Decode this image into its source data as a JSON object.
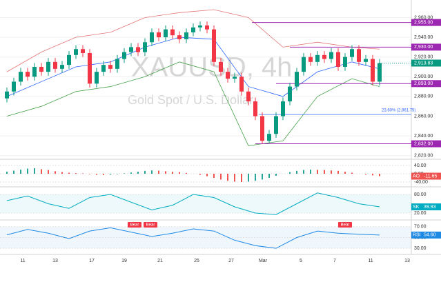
{
  "chart_data": {
    "type": "candlestick",
    "title": "XAUUSD, 4h",
    "subtitle": "Gold Spot / U.S. Dollar",
    "up_color": "#089981",
    "down_color": "#f23645",
    "open": [
      2878,
      2885,
      2895,
      2905,
      2900,
      2910,
      2905,
      2915,
      2908,
      2912,
      2922,
      2928,
      2924,
      2893,
      2905,
      2912,
      2908,
      2918,
      2925,
      2930,
      2925,
      2935,
      2945,
      2940,
      2948,
      2942,
      2938,
      2945,
      2950,
      2952,
      2948,
      2915,
      2905,
      2898,
      2900,
      2885,
      2875,
      2860,
      2835,
      2842,
      2860,
      2875,
      2890,
      2905,
      2920,
      2915,
      2922,
      2918,
      2925,
      2910,
      2920,
      2928,
      2915,
      2918,
      2895
    ],
    "high": [
      2889,
      2899,
      2909,
      2909,
      2914,
      2914,
      2919,
      2919,
      2916,
      2926,
      2932,
      2932,
      2928,
      2909,
      2916,
      2916,
      2922,
      2929,
      2934,
      2934,
      2939,
      2949,
      2949,
      2952,
      2952,
      2946,
      2949,
      2954,
      2956,
      2956,
      2952,
      2919,
      2909,
      2904,
      2904,
      2889,
      2879,
      2864,
      2846,
      2864,
      2879,
      2894,
      2909,
      2924,
      2924,
      2926,
      2926,
      2929,
      2929,
      2924,
      2932,
      2932,
      2922,
      2922,
      2918
    ],
    "low": [
      2874,
      2881,
      2891,
      2896,
      2896,
      2901,
      2901,
      2904,
      2904,
      2908,
      2918,
      2920,
      2889,
      2889,
      2901,
      2904,
      2904,
      2914,
      2921,
      2921,
      2921,
      2931,
      2936,
      2936,
      2938,
      2934,
      2934,
      2941,
      2946,
      2944,
      2911,
      2901,
      2894,
      2894,
      2881,
      2871,
      2856,
      2832,
      2833,
      2838,
      2856,
      2871,
      2886,
      2901,
      2911,
      2911,
      2914,
      2914,
      2906,
      2906,
      2916,
      2911,
      2911,
      2891,
      2891
    ],
    "close": [
      2885,
      2895,
      2905,
      2900,
      2910,
      2905,
      2915,
      2908,
      2912,
      2922,
      2928,
      2924,
      2893,
      2905,
      2912,
      2908,
      2918,
      2925,
      2930,
      2925,
      2935,
      2945,
      2940,
      2948,
      2942,
      2938,
      2945,
      2950,
      2952,
      2948,
      2915,
      2905,
      2898,
      2900,
      2885,
      2875,
      2860,
      2835,
      2842,
      2860,
      2875,
      2890,
      2905,
      2920,
      2915,
      2922,
      2918,
      2925,
      2910,
      2920,
      2928,
      2915,
      2918,
      2895,
      2913.83
    ],
    "ylim": [
      2817,
      2975
    ],
    "yticks": [
      {
        "value": 2820,
        "label": "2,820.00"
      },
      {
        "value": 2840,
        "label": "2,840.00"
      },
      {
        "value": 2860,
        "label": "2,860.00"
      },
      {
        "value": 2880,
        "label": "2,880.00"
      },
      {
        "value": 2900,
        "label": "2,900.00"
      },
      {
        "value": 2920,
        "label": "2,920.00"
      },
      {
        "value": 2940,
        "label": "2,940.00"
      },
      {
        "value": 2960,
        "label": "2,960.00"
      }
    ],
    "levels": [
      {
        "value": 2955,
        "label": "2,955.00"
      },
      {
        "value": 2930,
        "label": "2,930.00"
      },
      {
        "value": 2893,
        "label": "2,893.00"
      },
      {
        "value": 2832,
        "label": "2,832.00"
      }
    ],
    "level_color": "#9c27b0",
    "current": {
      "value": 2913.83,
      "label": "2,913.83"
    },
    "fib": {
      "value": 2861.75,
      "label": "23.60% (2,861.75)"
    },
    "bands": {
      "x": [
        0,
        5,
        10,
        15,
        20,
        25,
        30,
        35,
        40,
        45,
        50,
        54
      ],
      "upper": [
        2905,
        2925,
        2940,
        2945,
        2960,
        2965,
        2968,
        2960,
        2930,
        2935,
        2930,
        2928
      ],
      "middle": [
        2880,
        2895,
        2910,
        2915,
        2930,
        2940,
        2938,
        2890,
        2880,
        2905,
        2915,
        2908
      ],
      "lower": [
        2860,
        2870,
        2885,
        2890,
        2900,
        2915,
        2905,
        2830,
        2835,
        2880,
        2898,
        2890
      ]
    },
    "x_labels": [
      "11",
      "13",
      "17",
      "19",
      "21",
      "25",
      "27",
      "Mar",
      "5",
      "7",
      "11",
      "13"
    ],
    "ao": {
      "name": "AO",
      "last_label": "-11.65",
      "ylim": [
        -60,
        60
      ],
      "yticks": [
        {
          "value": 40,
          "label": "40.00"
        },
        {
          "value": 0,
          "label": "0.00"
        },
        {
          "value": -40,
          "label": "-40.00"
        }
      ],
      "values": [
        10,
        15,
        20,
        25,
        27,
        22,
        18,
        12,
        8,
        5,
        3,
        2,
        -2,
        -5,
        -6,
        -4,
        -2,
        2,
        6,
        10,
        14,
        16,
        15,
        12,
        10,
        8,
        4,
        0,
        -5,
        -12,
        -20,
        -28,
        -34,
        -38,
        -40,
        -38,
        -34,
        -28,
        -20,
        -10,
        0,
        8,
        14,
        18,
        20,
        19,
        18,
        16,
        14,
        10,
        5,
        0,
        -4,
        -8,
        -11.65
      ]
    },
    "stoch": {
      "name": "SK",
      "last_label": "39.93",
      "ylim": [
        0,
        100
      ],
      "yticks": [
        {
          "value": 80,
          "label": "80.00"
        },
        {
          "value": 20,
          "label": "20.00"
        }
      ],
      "x": [
        0,
        3,
        6,
        9,
        12,
        15,
        18,
        21,
        24,
        27,
        30,
        33,
        36,
        39,
        42,
        45,
        48,
        51,
        54
      ],
      "values": [
        60,
        75,
        50,
        35,
        70,
        80,
        55,
        30,
        45,
        80,
        70,
        40,
        20,
        15,
        50,
        85,
        70,
        50,
        39.93
      ]
    },
    "rsi": {
      "name": "RSI",
      "last_label": "54.60",
      "ylim": [
        20,
        80
      ],
      "yticks": [
        {
          "value": 70,
          "label": "70.00"
        },
        {
          "value": 50,
          "label": "50.00"
        },
        {
          "value": 30,
          "label": "30.00"
        }
      ],
      "x": [
        0,
        3,
        6,
        9,
        12,
        15,
        18,
        21,
        24,
        27,
        30,
        33,
        36,
        39,
        42,
        45,
        48,
        51,
        54
      ],
      "values": [
        55,
        65,
        58,
        48,
        62,
        68,
        60,
        52,
        58,
        66,
        62,
        45,
        35,
        30,
        50,
        62,
        58,
        56,
        54.6
      ],
      "annotations": [
        "Bear",
        "Bear",
        "Bear"
      ]
    }
  }
}
